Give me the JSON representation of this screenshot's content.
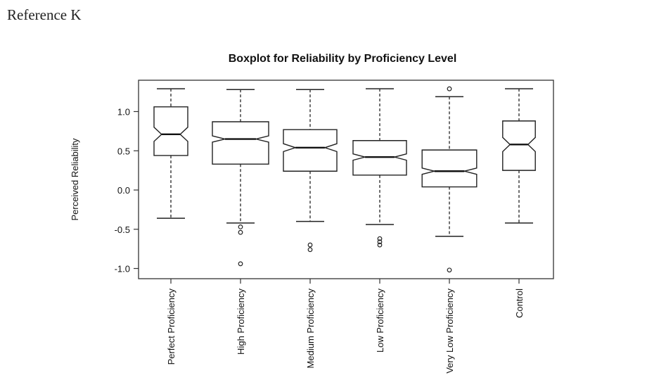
{
  "heading": "Reference K",
  "chart_data": {
    "type": "boxplot",
    "notched": true,
    "title": "Boxplot for Reliability by Proficiency Level",
    "xlabel": "",
    "ylabel": "Perceived Reliability",
    "ylim": [
      -1.1,
      1.4
    ],
    "yticks": [
      1.0,
      0.5,
      0.0,
      -0.5,
      -1.0
    ],
    "ytick_labels": [
      "1.0",
      "0.5",
      "0.0",
      "-0.5",
      "-1.0"
    ],
    "categories": [
      "Perfect Proficiency",
      "High Proficiency",
      "Medium Proficiency",
      "Low Proficiency",
      "Very Low Proficiency",
      "Control"
    ],
    "boxes": [
      {
        "whisker_low": -0.36,
        "q1": 0.44,
        "median": 0.71,
        "q3": 1.06,
        "whisker_high": 1.29,
        "notch": 0.09,
        "relative_width": 0.6,
        "outliers": []
      },
      {
        "whisker_low": -0.42,
        "q1": 0.33,
        "median": 0.65,
        "q3": 0.87,
        "whisker_high": 1.28,
        "notch": 0.04,
        "relative_width": 1.0,
        "outliers": [
          -0.47,
          -0.54,
          -0.94
        ]
      },
      {
        "whisker_low": -0.4,
        "q1": 0.24,
        "median": 0.54,
        "q3": 0.77,
        "whisker_high": 1.28,
        "notch": 0.05,
        "relative_width": 0.95,
        "outliers": [
          -0.7,
          -0.76
        ]
      },
      {
        "whisker_low": -0.44,
        "q1": 0.19,
        "median": 0.42,
        "q3": 0.63,
        "whisker_high": 1.29,
        "notch": 0.04,
        "relative_width": 0.95,
        "outliers": [
          -0.62,
          -0.66,
          -0.7
        ]
      },
      {
        "whisker_low": -0.59,
        "q1": 0.04,
        "median": 0.24,
        "q3": 0.51,
        "whisker_high": 1.19,
        "notch": 0.04,
        "relative_width": 0.97,
        "outliers": [
          1.29,
          -1.02
        ]
      },
      {
        "whisker_low": -0.42,
        "q1": 0.25,
        "median": 0.58,
        "q3": 0.88,
        "whisker_high": 1.29,
        "notch": 0.09,
        "relative_width": 0.58,
        "outliers": []
      }
    ]
  }
}
